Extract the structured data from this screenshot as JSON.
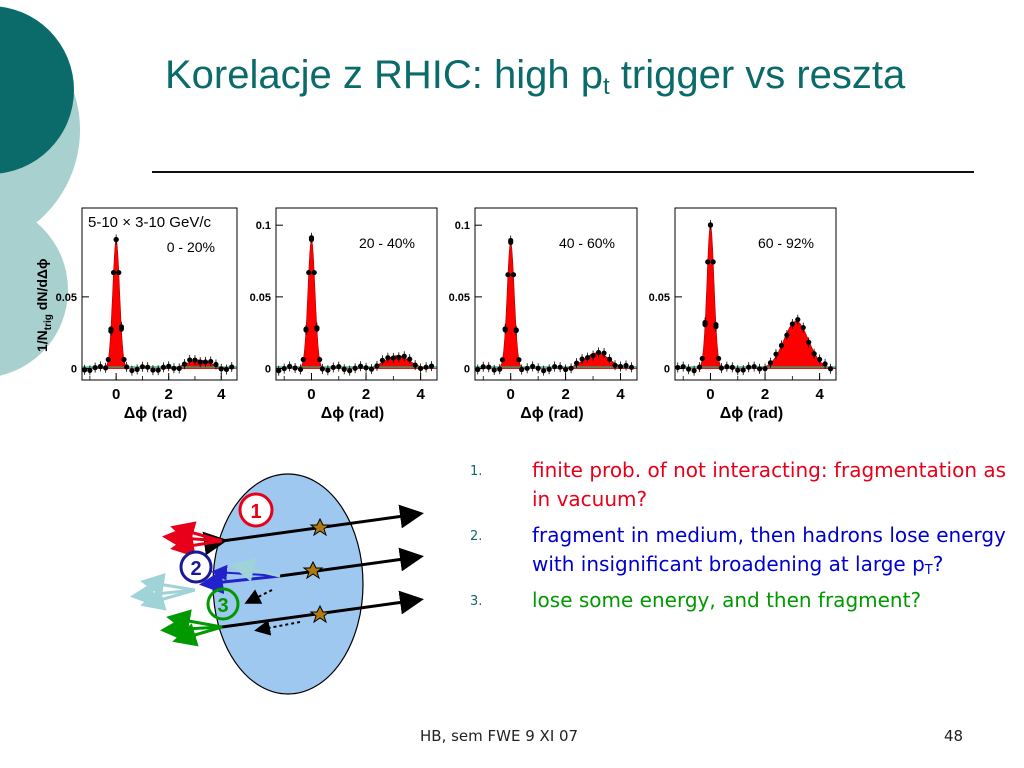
{
  "slide": {
    "title_main": "Korelacje z RHIC: high p",
    "title_sub": "t",
    "title_rest": " trigger vs reszta",
    "footer_text": "HB, sem FWE 9 XI 07",
    "page_number": "48",
    "colors": {
      "teal": "#0b6b6b",
      "light_teal": "#a8d0cf",
      "red": "#e8001a",
      "blue": "#0000cc",
      "green": "#009900"
    }
  },
  "plots": {
    "ylabel": "1/N",
    "ylabel_sub": "trig",
    "ylabel_rest": " dN/dΔϕ",
    "xlabel": "Δϕ (rad)",
    "energy_label": "5-10 × 3-10 GeV/c",
    "x_ticks": [
      "0",
      "2",
      "4"
    ],
    "panels": [
      {
        "centrality": "0 - 20%",
        "y_ticks": [
          "0.05",
          "0"
        ],
        "peak_near": 0.09,
        "peak_away": 0.006
      },
      {
        "centrality": "20 - 40%",
        "y_ticks": [
          "0.1",
          "0.05",
          "0"
        ],
        "peak_near": 0.09,
        "peak_away": 0.009
      },
      {
        "centrality": "40 - 60%",
        "y_ticks": [
          "0.1",
          "0.05",
          "0"
        ],
        "peak_near": 0.088,
        "peak_away": 0.011
      },
      {
        "centrality": "60 - 92%",
        "y_ticks": [
          "0.05",
          "0"
        ],
        "peak_near": 0.1,
        "peak_away": 0.033
      }
    ]
  },
  "diagram": {
    "labels": [
      "1",
      "2",
      "3"
    ]
  },
  "bullets": [
    {
      "num": "1.",
      "text": "finite prob. of not interacting: fragmentation as in vacuum?"
    },
    {
      "num": "2.",
      "text_pre": "fragment in medium, then hadrons lose energy with insignificant broadening at large p",
      "sub": "T",
      "text_post": "?"
    },
    {
      "num": "3.",
      "text": "lose some energy, and then fragment?"
    }
  ]
}
